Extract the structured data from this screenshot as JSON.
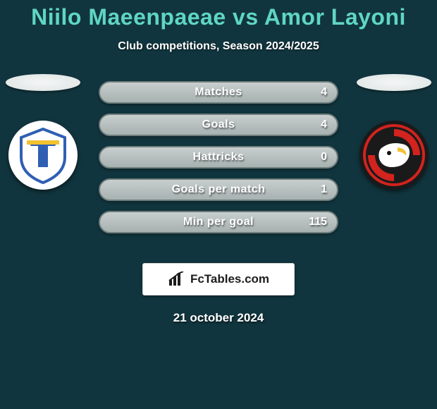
{
  "background_color": "#11353e",
  "title": {
    "text": "Niilo Maeenpaeae vs Amor Layoni",
    "color": "#5fd6c4",
    "fontsize": 32
  },
  "subtitle": {
    "text": "Club competitions, Season 2024/2025",
    "fontsize": 16
  },
  "stats": {
    "label_fontsize": 16,
    "value_fontsize": 16,
    "rows": [
      {
        "label": "Matches",
        "right": "4"
      },
      {
        "label": "Goals",
        "right": "4"
      },
      {
        "label": "Hattricks",
        "right": "0"
      },
      {
        "label": "Goals per match",
        "right": "1"
      },
      {
        "label": "Min per goal",
        "right": "115"
      }
    ]
  },
  "badges": {
    "left": {
      "name": "halmstad-badge",
      "bg": "#ffffff",
      "accent": "#2f5fb3",
      "accent2": "#f2c230"
    },
    "right": {
      "name": "redhawks-badge",
      "bg": "#1a1a1a",
      "accent": "#d2231e",
      "accent2": "#ffffff"
    }
  },
  "watermark": {
    "text": "FcTables.com",
    "fontsize": 17,
    "icon_color": "#1c1c1c"
  },
  "date": {
    "text": "21 october 2024",
    "fontsize": 17
  }
}
